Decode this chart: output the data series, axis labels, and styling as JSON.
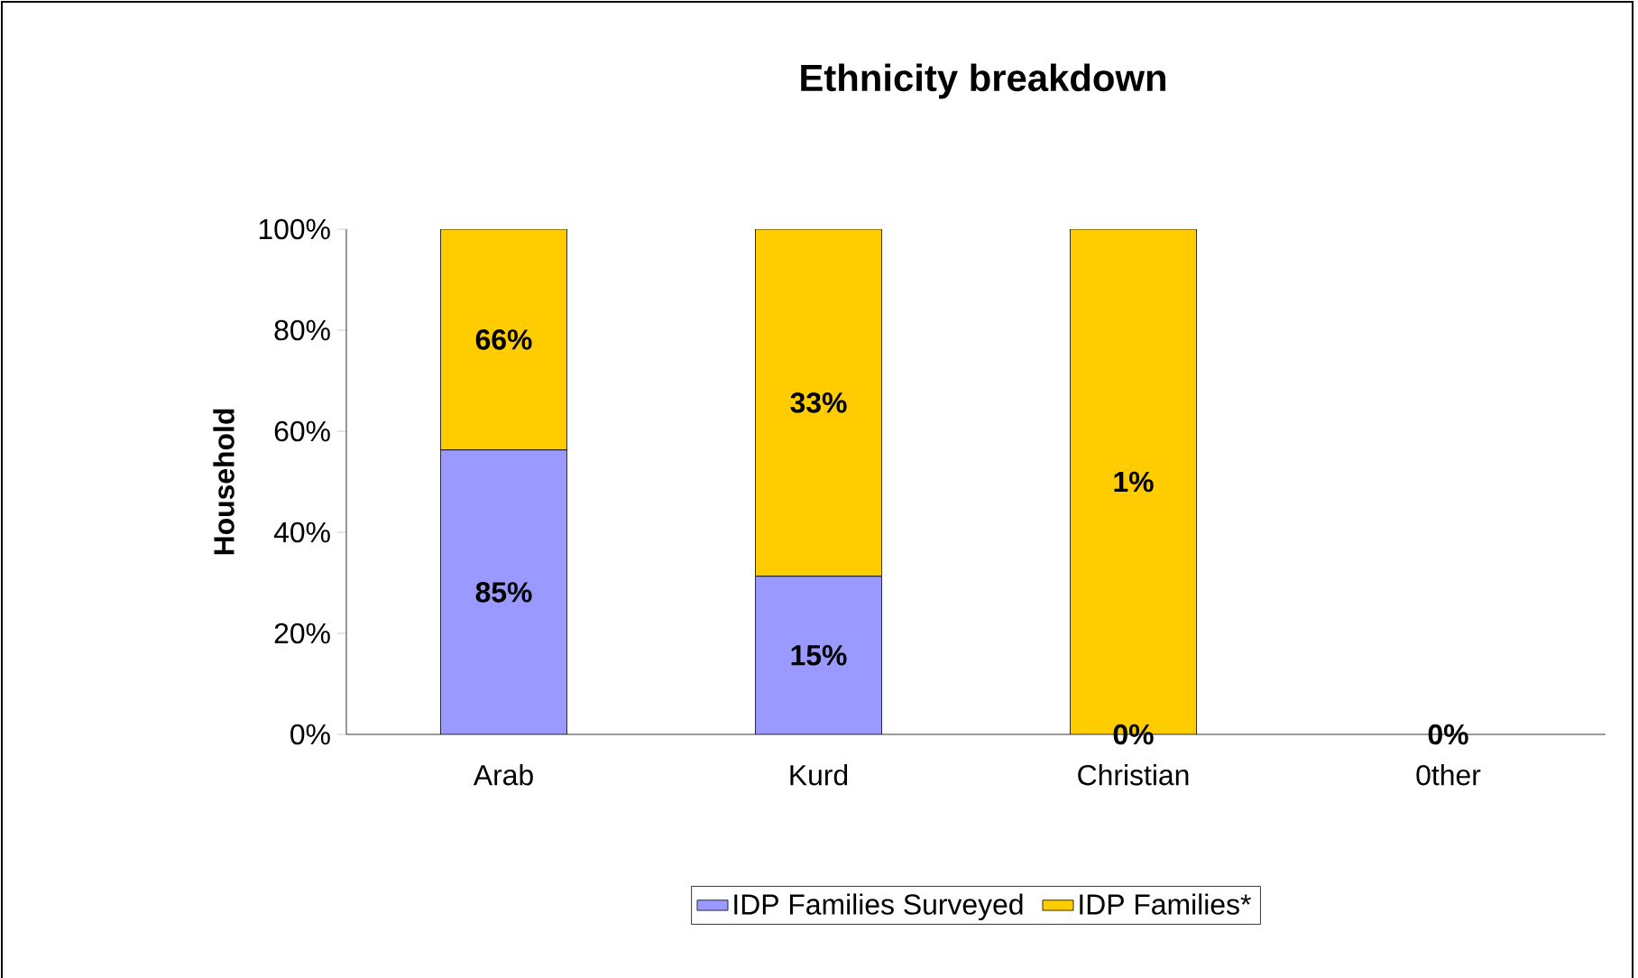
{
  "chart_data": {
    "type": "bar",
    "title": "Ethnicity breakdown",
    "ylabel": "Household",
    "stacked": true,
    "categories": [
      "Arab",
      "Kurd",
      "Christian",
      "0ther"
    ],
    "series": [
      {
        "name": "IDP Families Surveyed",
        "color": "#9999ff",
        "values": [
          56.3,
          31.3,
          0,
          0
        ]
      },
      {
        "name": "IDP Families*",
        "color": "#ffcc00",
        "values": [
          43.7,
          68.7,
          100,
          0
        ]
      }
    ],
    "annotations": [
      "85%",
      "15%",
      "0%",
      "0%",
      "66%",
      "33%",
      "1%"
    ],
    "ylim": [
      0,
      100
    ],
    "yticks": [
      {
        "value": 0,
        "label": "0%"
      },
      {
        "value": 20,
        "label": "20%"
      },
      {
        "value": 40,
        "label": "40%"
      },
      {
        "value": 60,
        "label": "60%"
      },
      {
        "value": 80,
        "label": "80%"
      },
      {
        "value": 100,
        "label": "100%"
      }
    ],
    "grid": false,
    "legend": "bottom"
  }
}
